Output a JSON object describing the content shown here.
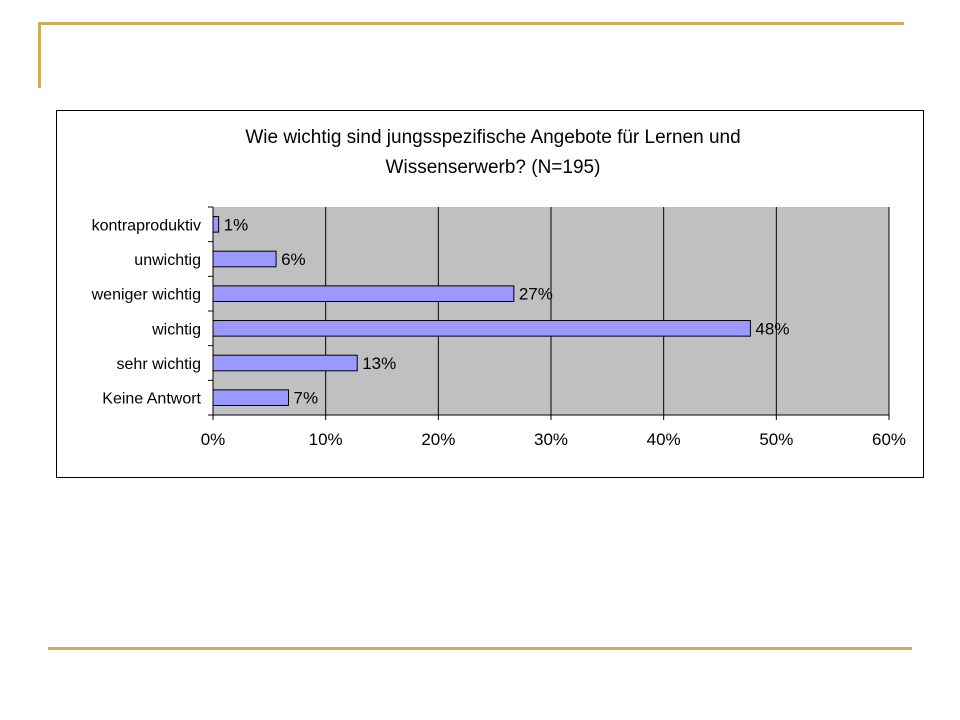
{
  "slide": {
    "accent_color": "#c9b15a"
  },
  "chart_data": {
    "type": "bar",
    "orientation": "horizontal",
    "title_lines": [
      "Wie wichtig sind jungsspezifische Angebote für Lernen und",
      "Wissenserwerb? (N=195)"
    ],
    "categories": [
      "kontraproduktiv",
      "unwichtig",
      "weniger wichtig",
      "wichtig",
      "sehr wichtig",
      "Keine Antwort"
    ],
    "values": [
      0.5,
      5.6,
      26.7,
      47.7,
      12.8,
      6.7
    ],
    "data_labels": [
      "1%",
      "6%",
      "27%",
      "48%",
      "13%",
      "7%"
    ],
    "xlim": [
      0,
      60
    ],
    "xticks": [
      0,
      10,
      20,
      30,
      40,
      50,
      60
    ],
    "xtick_labels": [
      "0%",
      "10%",
      "20%",
      "30%",
      "40%",
      "50%",
      "60%"
    ],
    "xlabel": "",
    "ylabel": "",
    "grid": "vertical",
    "legend": "none",
    "colors": {
      "plot_background": "#c0c0c0",
      "bar_fill": "#9999ff",
      "bar_stroke": "#000000",
      "gridline": "#000000"
    }
  }
}
